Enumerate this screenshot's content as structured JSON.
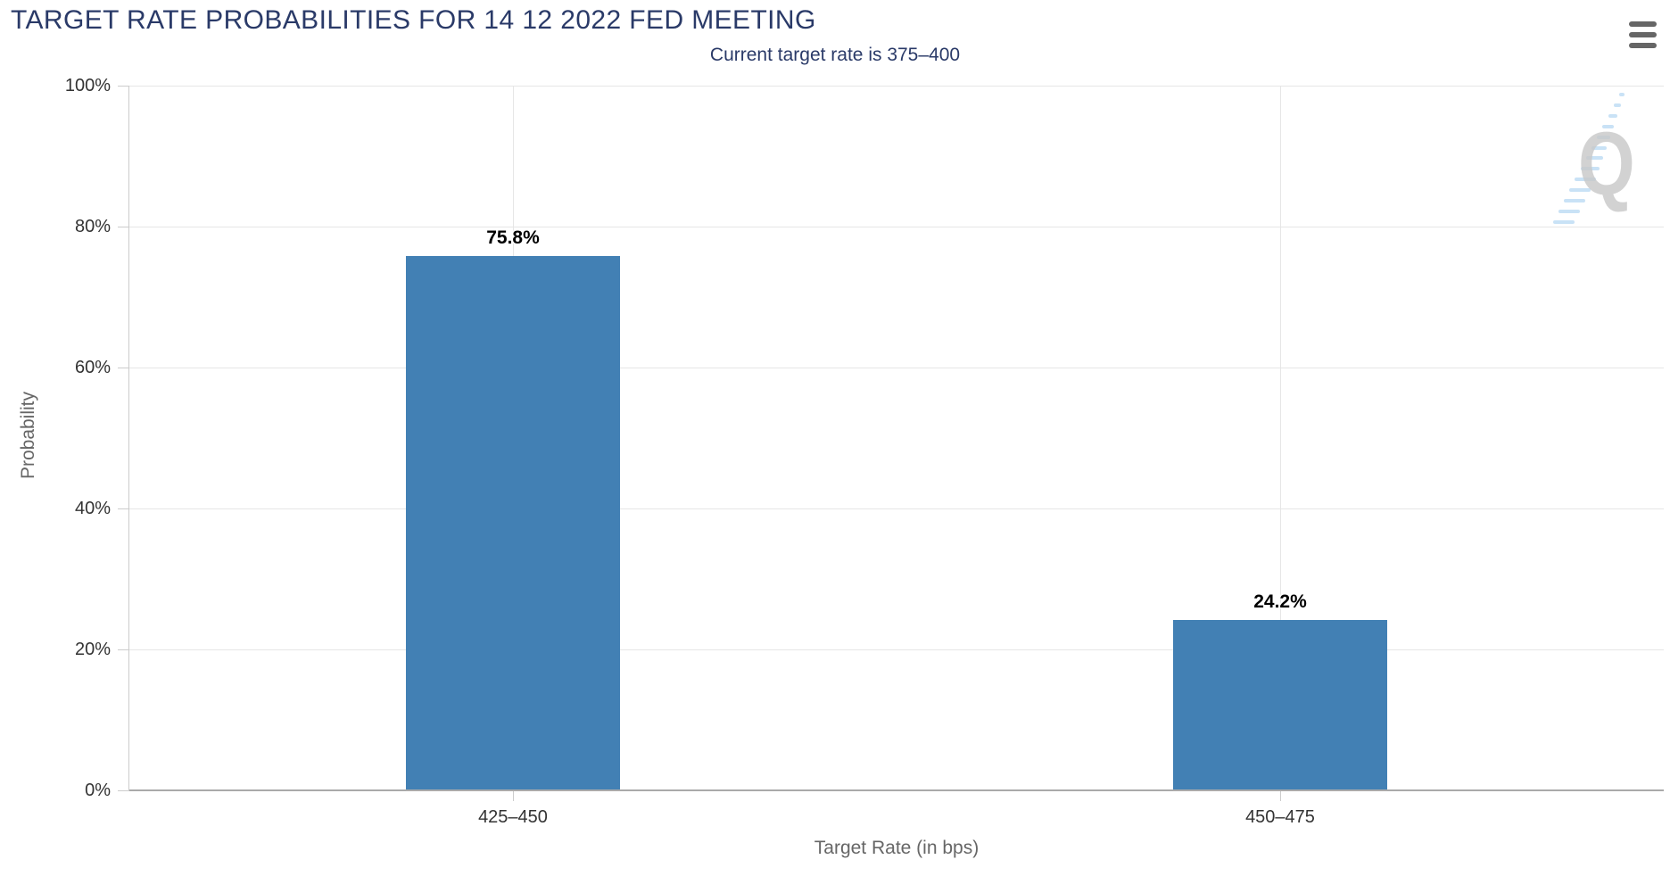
{
  "chart_data": {
    "type": "bar",
    "title": "TARGET RATE PROBABILITIES FOR 14 12 2022 FED MEETING",
    "subtitle": "Current target rate is 375–400",
    "categories": [
      "425–450",
      "450–475"
    ],
    "values": [
      75.8,
      24.2
    ],
    "value_labels": [
      "75.8%",
      "24.2%"
    ],
    "xlabel": "Target Rate (in bps)",
    "ylabel": "Probability",
    "ylim": [
      0,
      100
    ],
    "yticks": [
      0,
      20,
      40,
      60,
      80,
      100
    ],
    "ytick_labels": [
      "0%",
      "20%",
      "40%",
      "60%",
      "80%",
      "100%"
    ],
    "grid": true,
    "legend": "none"
  },
  "header": {
    "menu_icon": "hamburger-icon"
  },
  "watermark": {
    "letter": "Q"
  },
  "colors": {
    "title": "#2A3A68",
    "subtitle": "#2A3A68",
    "bar": "#4280B4",
    "gridline": "#E6E6E6",
    "axis_line": "#AAAAAA",
    "y_axis_line": "#CCCCCC",
    "tick": "#CCCCCC",
    "axis_label": "#333333",
    "axis_title": "#666666",
    "data_label": "#000000",
    "menu_icon": "#666666",
    "watermark_q": "#C8C8C8",
    "watermark_dash": "#BFDDF4"
  }
}
